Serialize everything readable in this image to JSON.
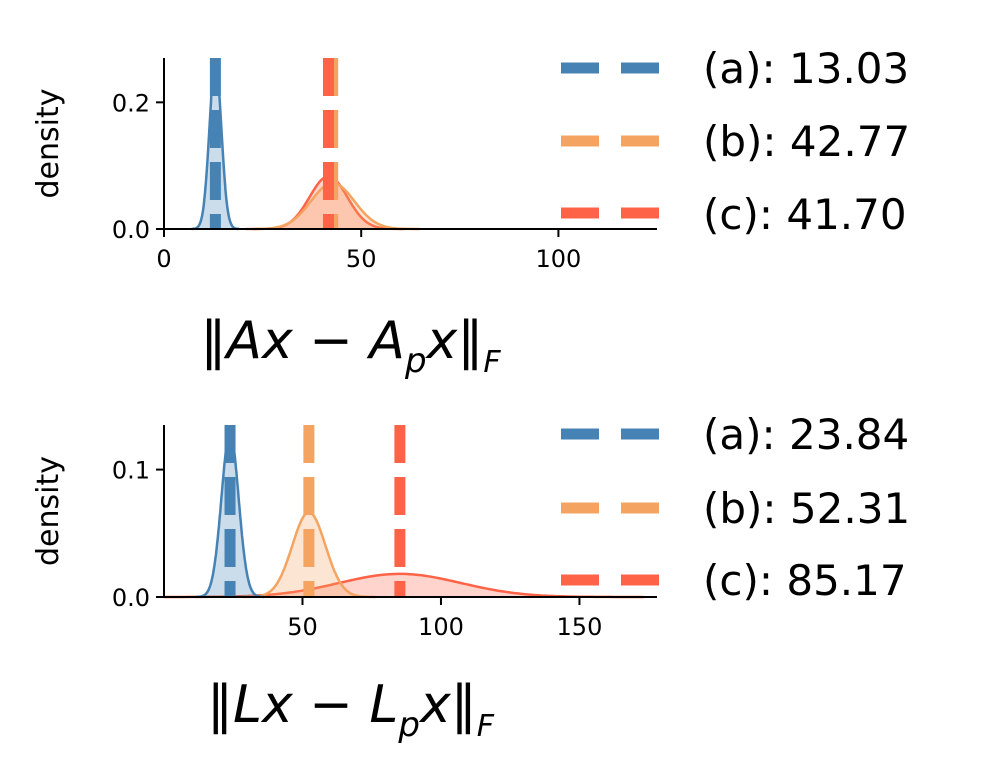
{
  "chart_data": [
    {
      "type": "density",
      "xlabel": "‖Ax − Apx‖F",
      "xlabel_parts": [
        "‖Ax − A",
        "p",
        "x‖",
        "F"
      ],
      "ylabel": "density",
      "xlim": [
        0,
        125
      ],
      "ylim": [
        0,
        0.27
      ],
      "xticks": [
        0,
        50,
        100
      ],
      "yticks": [
        0.0,
        0.2
      ],
      "ytick_labels": [
        "0.0",
        "0.2"
      ],
      "series": [
        {
          "name": "(a)",
          "label": "(a): 13.03",
          "mean": 13.03,
          "std": 1.5,
          "color": "#4682b4"
        },
        {
          "name": "(b)",
          "label": "(b): 42.77",
          "mean": 42.77,
          "std": 5.5,
          "color": "#f4a460"
        },
        {
          "name": "(c)",
          "label": "(c): 41.70",
          "mean": 41.7,
          "std": 4.8,
          "color": "#ff6347"
        }
      ]
    },
    {
      "type": "density",
      "xlabel": "‖Lx − Lpx‖F",
      "xlabel_parts": [
        "‖Lx − L",
        "p",
        "x‖",
        "F"
      ],
      "ylabel": "density",
      "xlim": [
        0,
        178
      ],
      "ylim": [
        0,
        0.135
      ],
      "xticks": [
        50,
        100,
        150
      ],
      "yticks": [
        0.0,
        0.1
      ],
      "ytick_labels": [
        "0.0",
        "0.1"
      ],
      "series": [
        {
          "name": "(a)",
          "label": "(a): 23.84",
          "mean": 23.84,
          "std": 3.1,
          "color": "#4682b4"
        },
        {
          "name": "(b)",
          "label": "(b): 52.31",
          "mean": 52.31,
          "std": 6.0,
          "color": "#f4a460"
        },
        {
          "name": "(c)",
          "label": "(c): 85.17",
          "mean": 85.17,
          "std": 22.0,
          "color": "#ff6347"
        }
      ]
    }
  ]
}
